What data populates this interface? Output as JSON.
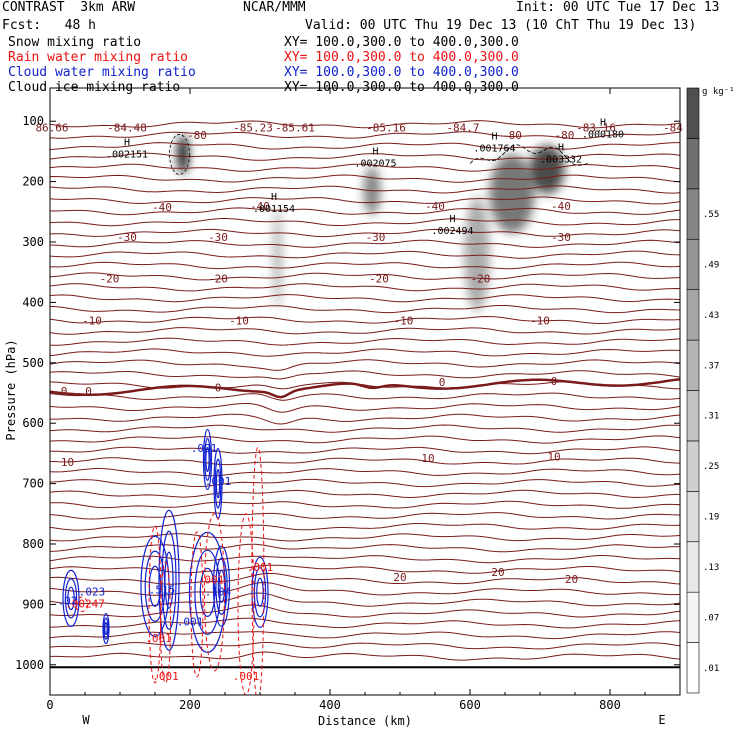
{
  "header": {
    "title": "CONTRAST  3km ARW",
    "org": "NCAR/MMM",
    "init": "Init: 00 UTC Tue 17 Dec 13",
    "fcst": "Fcst:   48 h",
    "valid": "Valid: 00 UTC Thu 19 Dec 13 (10 ChT Thu 19 Dec 13)"
  },
  "fields": [
    {
      "name": "Snow mixing ratio",
      "xy": "XY= 100.0,300.0 to 400.0,300.0",
      "color": "#000000"
    },
    {
      "name": "Rain water mixing ratio",
      "xy": "XY= 100.0,300.0 to 400.0,300.0",
      "color": "#ee1111"
    },
    {
      "name": "Cloud water mixing ratio",
      "xy": "XY= 100.0,300.0 to 400.0,300.0",
      "color": "#1122cc"
    },
    {
      "name": "Cloud ice mixing ratio",
      "xy": "XY= 100.0,300.0 to 400.0,300.0",
      "color": "#000000"
    }
  ],
  "colors": {
    "temperature": "#7a1a1a",
    "rain": "#ee1111",
    "cloud_water": "#1122cc",
    "ice": "#000000"
  },
  "chart_data": {
    "type": "heatmap",
    "xlabel": "Distance (km)",
    "ylabel": "Pressure (hPa)",
    "xlim": [
      0,
      900
    ],
    "ylim": [
      1050,
      45
    ],
    "xticks": [
      0,
      200,
      400,
      600,
      800
    ],
    "yticks": [
      100,
      200,
      300,
      400,
      500,
      600,
      700,
      800,
      900,
      1000
    ],
    "x_left_label": "W",
    "x_right_label": "E",
    "colorbar": {
      "unit": "g kg⁻¹",
      "levels": [
        ".01",
        ".07",
        ".13",
        ".19",
        ".25",
        ".31",
        ".37",
        ".43",
        ".49",
        ".55"
      ],
      "shades": [
        "#ffffff",
        "#f4f4f4",
        "#e8e8e8",
        "#dcdcdc",
        "#cfcfcf",
        "#c2c2c2",
        "#b4b4b4",
        "#a5a5a5",
        "#959595",
        "#858585",
        "#707070",
        "#505050"
      ]
    },
    "temperature_labels": [
      {
        "x": -10,
        "p": 110,
        "text": "86.66"
      },
      {
        "x": 110,
        "p": 110,
        "text": "-84.48"
      },
      {
        "x": 290,
        "p": 110,
        "text": "-85.23"
      },
      {
        "x": 350,
        "p": 110,
        "text": "-85.61"
      },
      {
        "x": 480,
        "p": 110,
        "text": "-85.16"
      },
      {
        "x": 590,
        "p": 110,
        "text": "-84.7"
      },
      {
        "x": 780,
        "p": 110,
        "text": "-83.16"
      },
      {
        "x": 890,
        "p": 110,
        "text": "-84"
      },
      {
        "x": 210,
        "p": 123,
        "text": "-80"
      },
      {
        "x": 660,
        "p": 123,
        "text": "-80"
      },
      {
        "x": 735,
        "p": 123,
        "text": "-80"
      },
      {
        "x": 160,
        "p": 242,
        "text": "-40"
      },
      {
        "x": 300,
        "p": 240,
        "text": "-40"
      },
      {
        "x": 550,
        "p": 240,
        "text": "-40"
      },
      {
        "x": 730,
        "p": 240,
        "text": "-40"
      },
      {
        "x": 110,
        "p": 292,
        "text": "-30"
      },
      {
        "x": 240,
        "p": 292,
        "text": "-30"
      },
      {
        "x": 465,
        "p": 292,
        "text": "-30"
      },
      {
        "x": 730,
        "p": 292,
        "text": "-30"
      },
      {
        "x": 85,
        "p": 360,
        "text": "-20"
      },
      {
        "x": 240,
        "p": 360,
        "text": "-20"
      },
      {
        "x": 470,
        "p": 360,
        "text": "-20"
      },
      {
        "x": 615,
        "p": 360,
        "text": "-20"
      },
      {
        "x": 60,
        "p": 430,
        "text": "-10"
      },
      {
        "x": 270,
        "p": 430,
        "text": "-10"
      },
      {
        "x": 505,
        "p": 430,
        "text": "-10"
      },
      {
        "x": 700,
        "p": 430,
        "text": "-10"
      },
      {
        "x": 20,
        "p": 547,
        "text": "0"
      },
      {
        "x": 55,
        "p": 547,
        "text": "0"
      },
      {
        "x": 240,
        "p": 541,
        "text": "0"
      },
      {
        "x": 560,
        "p": 532,
        "text": "0"
      },
      {
        "x": 720,
        "p": 530,
        "text": "0"
      },
      {
        "x": 25,
        "p": 664,
        "text": "10"
      },
      {
        "x": 540,
        "p": 658,
        "text": "10"
      },
      {
        "x": 720,
        "p": 655,
        "text": "10"
      },
      {
        "x": 500,
        "p": 855,
        "text": "20"
      },
      {
        "x": 640,
        "p": 846,
        "text": "20"
      },
      {
        "x": 745,
        "p": 858,
        "text": "20"
      }
    ],
    "high_labels": [
      {
        "x": 110,
        "p": 155,
        "text": ".002151"
      },
      {
        "x": 320,
        "p": 245,
        "text": ".001154"
      },
      {
        "x": 465,
        "p": 170,
        "text": ".002075"
      },
      {
        "x": 575,
        "p": 282,
        "text": ".002494"
      },
      {
        "x": 635,
        "p": 145,
        "text": ".001764"
      },
      {
        "x": 730,
        "p": 163,
        "text": ".003332"
      },
      {
        "x": 790,
        "p": 122,
        "text": ".000180"
      }
    ],
    "rain_labels": [
      {
        "x": 50,
        "p": 905,
        "text": ".00247"
      },
      {
        "x": 155,
        "p": 962,
        "text": ".001"
      },
      {
        "x": 165,
        "p": 1025,
        "text": ".001"
      },
      {
        "x": 230,
        "p": 865,
        "text": ".001"
      },
      {
        "x": 300,
        "p": 845,
        "text": ".001"
      },
      {
        "x": 280,
        "p": 1025,
        "text": ".001"
      }
    ],
    "cloud_water_labels": [
      {
        "x": 60,
        "p": 885,
        "text": ".023"
      },
      {
        "x": 220,
        "p": 648,
        "text": ".001"
      },
      {
        "x": 240,
        "p": 702,
        "text": ".001"
      },
      {
        "x": 160,
        "p": 882,
        "text": ".515"
      },
      {
        "x": 240,
        "p": 885,
        "text": ".104"
      },
      {
        "x": 200,
        "p": 935,
        "text": ".001"
      },
      {
        "x": 25,
        "p": 900,
        "text": ".02"
      }
    ],
    "snow_blobs": [
      {
        "x": 190,
        "p": 155,
        "rx": 8,
        "rp": 32,
        "intensity": 0.42
      },
      {
        "x": 325,
        "p": 325,
        "rx": 7,
        "rp": 85,
        "intensity": 0.12
      },
      {
        "x": 460,
        "p": 215,
        "rx": 12,
        "rp": 40,
        "intensity": 0.22
      },
      {
        "x": 610,
        "p": 320,
        "rx": 18,
        "rp": 95,
        "intensity": 0.15
      },
      {
        "x": 660,
        "p": 220,
        "rx": 32,
        "rp": 65,
        "intensity": 0.24
      },
      {
        "x": 710,
        "p": 180,
        "rx": 25,
        "rp": 40,
        "intensity": 0.32
      }
    ]
  }
}
